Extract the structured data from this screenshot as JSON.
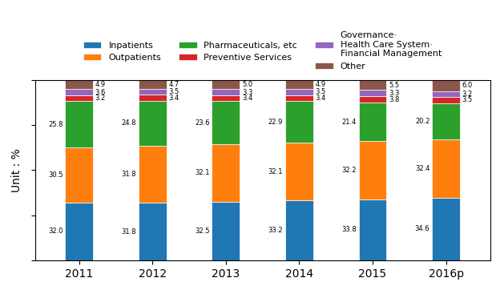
{
  "chart_data": {
    "type": "bar",
    "stacked": true,
    "data_labels": true,
    "tick_labels": "x",
    "grid": false,
    "ylabel": "Unit : %",
    "categories": [
      "2011",
      "2012",
      "2013",
      "2014",
      "2015",
      "2016p"
    ],
    "series": [
      {
        "name": "Inpatients",
        "values": [
          32.0,
          31.8,
          32.5,
          33.2,
          33.8,
          34.6
        ]
      },
      {
        "name": "Outpatients",
        "values": [
          30.5,
          31.8,
          32.1,
          32.1,
          32.2,
          32.4
        ]
      },
      {
        "name": "Pharmaceuticals, etc",
        "values": [
          25.8,
          24.8,
          23.6,
          22.9,
          21.4,
          20.2
        ]
      },
      {
        "name": "Preventive Services",
        "values": [
          3.2,
          3.4,
          3.4,
          3.4,
          3.8,
          3.5
        ]
      },
      {
        "name": "Governance·\nHealth Care System·\nFinancial Management",
        "values": [
          3.6,
          3.5,
          3.3,
          3.5,
          3.3,
          3.2
        ]
      },
      {
        "name": "Other",
        "values": [
          4.9,
          4.7,
          5.0,
          4.9,
          5.5,
          6.0
        ]
      }
    ],
    "ylim": [
      0,
      100
    ],
    "yticks": [
      0,
      25,
      50,
      75,
      100
    ],
    "legend": "lower center"
  }
}
